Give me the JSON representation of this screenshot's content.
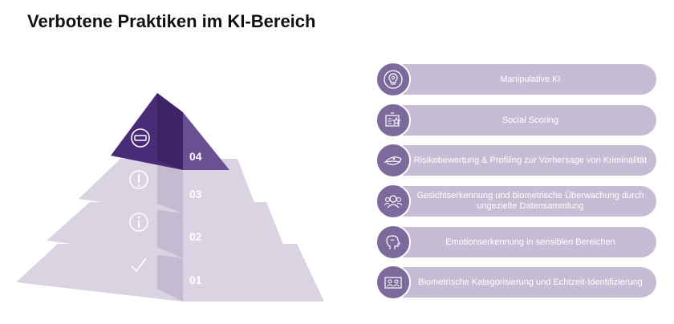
{
  "title": "Verbotene Praktiken im KI-Bereich",
  "colors": {
    "accent_dark": "#4a2b78",
    "accent_mid": "#6a4f93",
    "pill_bg": "#c6bdd5",
    "icon_circle": "#7d6a9c",
    "pyramid_light": "#d9d3e2",
    "pyramid_shade": "#c4bbd2"
  },
  "pyramid": {
    "levels": [
      {
        "number": "04",
        "icon": "no-entry-icon"
      },
      {
        "number": "03",
        "icon": "exclamation-icon"
      },
      {
        "number": "02",
        "icon": "info-icon"
      },
      {
        "number": "01",
        "icon": "checkmark-icon"
      }
    ]
  },
  "practices": [
    {
      "label": "Manipulative KI",
      "icon": "brain-bulb-icon"
    },
    {
      "label": "Social Scoring",
      "icon": "id-card-star-icon"
    },
    {
      "label": "Risikobewertung & Profiling zur Vorhersage von Kriminalität",
      "icon": "police-cap-icon"
    },
    {
      "label": "Gesichtserkennung und biometrische Überwachung durch ungezielte Datensammlung",
      "icon": "crowd-face-icon"
    },
    {
      "label": "Emotionserkennung in sensiblen Bereichen",
      "icon": "head-profile-icon"
    },
    {
      "label": "Biometrische Kategorisierung und Echtzeit-Identifizierung",
      "icon": "id-users-icon"
    }
  ]
}
